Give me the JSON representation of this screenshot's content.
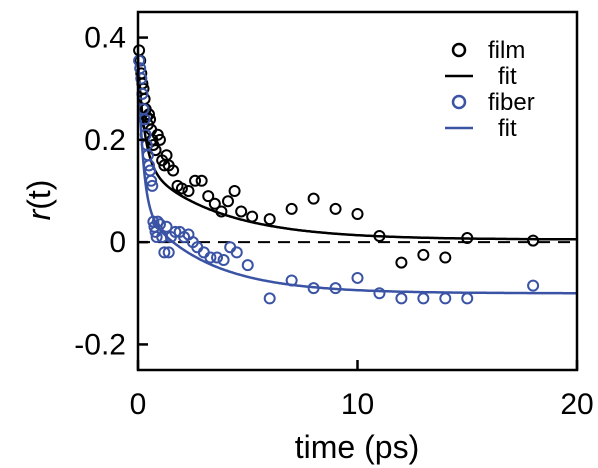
{
  "chart_data": {
    "type": "scatter",
    "xlabel": "time (ps)",
    "ylabel_italic": "r",
    "ylabel_rest": "(t)",
    "xlim": [
      0,
      20
    ],
    "ylim": [
      -0.25,
      0.45
    ],
    "xticks": [
      0,
      10,
      20
    ],
    "xtick_labels": [
      "0",
      "10",
      "20"
    ],
    "yticks": [
      -0.2,
      0,
      0.2,
      0.4
    ],
    "ytick_labels": [
      "-0.2",
      "0",
      "0.2",
      "0.4"
    ],
    "zero_line": {
      "y": 0,
      "style": "dashed",
      "color": "#000000"
    },
    "grid": false,
    "legend": {
      "position": "top-right",
      "entries": [
        {
          "label": "film",
          "kind": "marker",
          "color": "#000000"
        },
        {
          "label": "fit",
          "kind": "line",
          "color": "#000000"
        },
        {
          "label": "fiber",
          "kind": "marker",
          "color": "#3a53a4"
        },
        {
          "label": "fit",
          "kind": "line",
          "color": "#3a53a4"
        }
      ]
    },
    "series": [
      {
        "name": "film",
        "kind": "marker",
        "color": "#000000",
        "points": [
          [
            0.05,
            0.375
          ],
          [
            0.1,
            0.355
          ],
          [
            0.15,
            0.33
          ],
          [
            0.2,
            0.31
          ],
          [
            0.25,
            0.3
          ],
          [
            0.3,
            0.28
          ],
          [
            0.35,
            0.26
          ],
          [
            0.4,
            0.245
          ],
          [
            0.45,
            0.23
          ],
          [
            0.5,
            0.25
          ],
          [
            0.55,
            0.24
          ],
          [
            0.6,
            0.22
          ],
          [
            0.65,
            0.2
          ],
          [
            0.7,
            0.19
          ],
          [
            0.8,
            0.18
          ],
          [
            0.9,
            0.21
          ],
          [
            1.0,
            0.2
          ],
          [
            1.1,
            0.16
          ],
          [
            1.2,
            0.15
          ],
          [
            1.3,
            0.17
          ],
          [
            1.4,
            0.15
          ],
          [
            1.6,
            0.14
          ],
          [
            1.8,
            0.11
          ],
          [
            2.0,
            0.105
          ],
          [
            2.3,
            0.1
          ],
          [
            2.6,
            0.12
          ],
          [
            2.9,
            0.12
          ],
          [
            3.2,
            0.09
          ],
          [
            3.5,
            0.075
          ],
          [
            3.8,
            0.06
          ],
          [
            4.1,
            0.08
          ],
          [
            4.4,
            0.1
          ],
          [
            4.7,
            0.06
          ],
          [
            5.2,
            0.05
          ],
          [
            6.0,
            0.045
          ],
          [
            7.0,
            0.065
          ],
          [
            8.0,
            0.085
          ],
          [
            9.0,
            0.065
          ],
          [
            10.0,
            0.055
          ],
          [
            11.0,
            0.012
          ],
          [
            12.0,
            -0.04
          ],
          [
            13.0,
            -0.025
          ],
          [
            14.0,
            -0.03
          ],
          [
            15.0,
            0.008
          ],
          [
            18.0,
            0.003
          ]
        ]
      },
      {
        "name": "fit",
        "kind": "line",
        "color": "#000000",
        "fit": {
          "a1": 0.2,
          "t1": 0.3,
          "a2": 0.15,
          "t2": 3.5,
          "offset": 0.005
        }
      },
      {
        "name": "fiber",
        "kind": "marker",
        "color": "#3a53a4",
        "points": [
          [
            0.05,
            0.355
          ],
          [
            0.1,
            0.34
          ],
          [
            0.15,
            0.32
          ],
          [
            0.2,
            0.29
          ],
          [
            0.25,
            0.26
          ],
          [
            0.3,
            0.24
          ],
          [
            0.35,
            0.21
          ],
          [
            0.4,
            0.19
          ],
          [
            0.45,
            0.17
          ],
          [
            0.5,
            0.15
          ],
          [
            0.55,
            0.14
          ],
          [
            0.6,
            0.12
          ],
          [
            0.65,
            0.11
          ],
          [
            0.7,
            0.04
          ],
          [
            0.75,
            0.03
          ],
          [
            0.8,
            0.02
          ],
          [
            0.85,
            0.01
          ],
          [
            0.9,
            0.04
          ],
          [
            1.0,
            0.035
          ],
          [
            1.1,
            0.01
          ],
          [
            1.2,
            -0.02
          ],
          [
            1.3,
            0.03
          ],
          [
            1.4,
            -0.02
          ],
          [
            1.5,
            0.01
          ],
          [
            1.7,
            0.02
          ],
          [
            1.9,
            0.02
          ],
          [
            2.1,
            0.01
          ],
          [
            2.3,
            0.015
          ],
          [
            2.5,
            0.0
          ],
          [
            2.7,
            -0.01
          ],
          [
            3.0,
            -0.02
          ],
          [
            3.3,
            -0.03
          ],
          [
            3.6,
            -0.03
          ],
          [
            3.9,
            -0.035
          ],
          [
            4.2,
            -0.01
          ],
          [
            4.5,
            -0.02
          ],
          [
            5.0,
            -0.045
          ],
          [
            6.0,
            -0.11
          ],
          [
            7.0,
            -0.075
          ],
          [
            8.0,
            -0.09
          ],
          [
            9.0,
            -0.09
          ],
          [
            10.0,
            -0.07
          ],
          [
            11.0,
            -0.1
          ],
          [
            12.0,
            -0.11
          ],
          [
            13.0,
            -0.11
          ],
          [
            14.0,
            -0.11
          ],
          [
            15.0,
            -0.11
          ],
          [
            18.0,
            -0.085
          ]
        ]
      },
      {
        "name": "fit",
        "kind": "line",
        "color": "#3a53a4",
        "fit": {
          "a1": 0.3,
          "t1": 0.22,
          "a2": 0.17,
          "t2": 3.0,
          "offset": -0.1
        }
      }
    ]
  }
}
